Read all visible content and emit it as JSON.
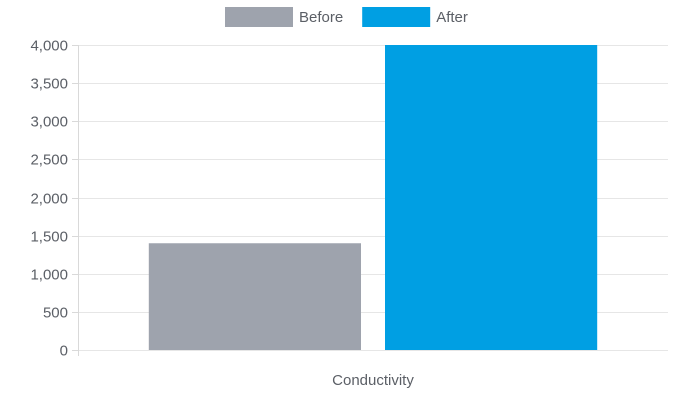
{
  "chart_data": {
    "type": "bar",
    "categories": [
      "Conductivity"
    ],
    "series": [
      {
        "name": "Before",
        "values": [
          1400
        ],
        "color": "#9ea3ad"
      },
      {
        "name": "After",
        "values": [
          4000
        ],
        "color": "#009fe3"
      }
    ],
    "ylim": [
      0,
      4000
    ],
    "yticks": [
      0,
      500,
      1000,
      1500,
      2000,
      2500,
      3000,
      3500,
      4000
    ],
    "ytick_labels": [
      "0",
      "500",
      "1,000",
      "1,500",
      "2,000",
      "2,500",
      "3,000",
      "3,500",
      "4,000"
    ],
    "title": "",
    "xlabel": "",
    "ylabel": "",
    "grid": true,
    "legend_position": "top-center"
  }
}
